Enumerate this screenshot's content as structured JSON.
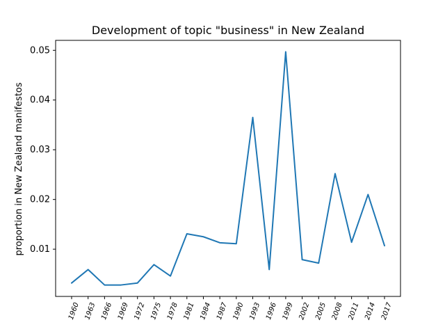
{
  "chart_data": {
    "type": "line",
    "title": "Development of topic \"business\" in New Zealand",
    "xlabel": "",
    "ylabel": "proportion in New Zealand manifestos",
    "x": [
      "1960",
      "1963",
      "1966",
      "1969",
      "1972",
      "1975",
      "1978",
      "1981",
      "1984",
      "1987",
      "1990",
      "1993",
      "1996",
      "1999",
      "2002",
      "2005",
      "2008",
      "2011",
      "2014",
      "2017"
    ],
    "series": [
      {
        "color": "#1f77b4",
        "values": [
          0.0032,
          0.0059,
          0.0028,
          0.0028,
          0.0032,
          0.0069,
          0.0046,
          0.0131,
          0.0125,
          0.0113,
          0.0111,
          0.0365,
          0.0059,
          0.0497,
          0.0079,
          0.0072,
          0.0252,
          0.0114,
          0.021,
          0.0107
        ]
      }
    ],
    "ylim": [
      0.0005,
      0.052
    ],
    "yticks": [
      0.01,
      0.02,
      0.03,
      0.04,
      0.05
    ],
    "ytick_labels": [
      "0.01",
      "0.02",
      "0.03",
      "0.04",
      "0.05"
    ],
    "xtick_rotation": "70",
    "grid": false,
    "legend": "none"
  }
}
